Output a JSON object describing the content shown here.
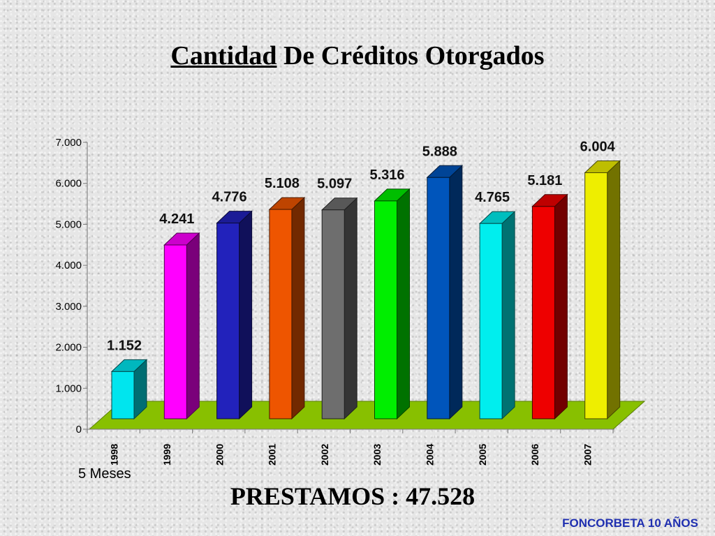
{
  "slide": {
    "title_part1": "Cantidad",
    "title_part2": " De Créditos Otorgados",
    "note": "5 Meses",
    "total_label": "PRESTAMOS : ",
    "total_value": "47.528",
    "footer": "FONCORBETA 10 AÑOS"
  },
  "chart_data": {
    "type": "bar",
    "categories": [
      "1998",
      "1999",
      "2000",
      "2001",
      "2002",
      "2003",
      "2004",
      "2005",
      "2006",
      "2007"
    ],
    "values": [
      1152,
      4241,
      4776,
      5108,
      5097,
      5316,
      5888,
      4765,
      5181,
      6004
    ],
    "data_labels": [
      "1.152",
      "4.241",
      "4.776",
      "5.108",
      "5.097",
      "5.316",
      "5.888",
      "4.765",
      "5.181",
      "6.004"
    ],
    "colors": [
      "#00e5ee",
      "#ff00ff",
      "#2222bb",
      "#ee5500",
      "#6e6e6e",
      "#00ee00",
      "#0055bb",
      "#00eeee",
      "#ee0000",
      "#eeee00"
    ],
    "floor_color": "#88c000",
    "ylim": [
      0,
      7000
    ],
    "yticks": [
      0,
      1000,
      2000,
      3000,
      4000,
      5000,
      6000,
      7000
    ],
    "ytick_labels": [
      "0",
      "1.000",
      "2.000",
      "3.000",
      "4.000",
      "5.000",
      "6.000",
      "7.000"
    ],
    "grid": false,
    "legend": "none"
  }
}
